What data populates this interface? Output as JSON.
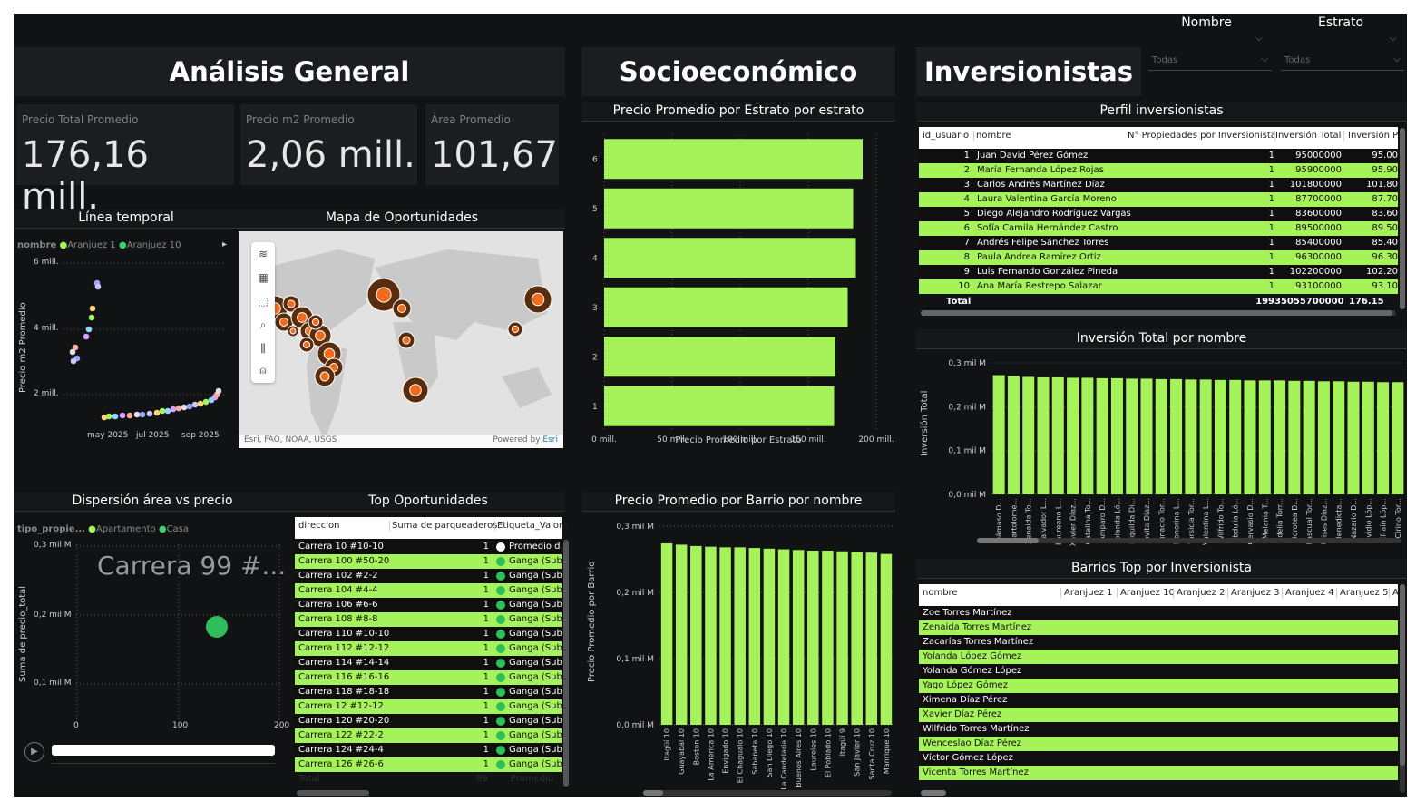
{
  "sections": {
    "general": "Análisis General",
    "socio": "Socioeconómico",
    "inversionistas": "Inversionistas"
  },
  "slicers": {
    "nombre": {
      "label": "Nombre",
      "value": "Todas"
    },
    "estrato": {
      "label": "Estrato",
      "value": "Todas"
    }
  },
  "kpis": [
    {
      "label": "Precio Total Promedio",
      "value": "176,16 mill."
    },
    {
      "label": "Precio m2 Promedio",
      "value": "2,06 mill."
    },
    {
      "label": "Área Promedio",
      "value": "101,67"
    }
  ],
  "timeline": {
    "title": "Línea temporal",
    "legend_label": "nombre",
    "legend": [
      {
        "name": "Aranjuez 1",
        "color": "#a5f25a"
      },
      {
        "name": "Aranjuez 10",
        "color": "#3ad36b"
      }
    ],
    "ylabel": "Precio m2 Promedio",
    "yticks": [
      "6 mill.",
      "4 mill.",
      "2 mill."
    ],
    "xticks": [
      "may 2025",
      "jul 2025",
      "sep 2025"
    ]
  },
  "map": {
    "title": "Mapa de Oportunidades",
    "attribution": "Esri, FAO, NOAA, USGS",
    "powered": "Powered by",
    "powered_link": "Esri"
  },
  "scatter": {
    "title": "Dispersión área vs precio",
    "legend_label": "tipo_propie...",
    "legend": [
      {
        "name": "Apartamento",
        "color": "#a5f25a"
      },
      {
        "name": "Casa",
        "color": "#3ad36b"
      }
    ],
    "ylabel": "Suma de precio_total",
    "yticks": [
      "0,3 mil M",
      "0,2 mil M",
      "0,1 mil M"
    ],
    "xticks": [
      "0",
      "100",
      "200"
    ],
    "overlay": "Carrera 99 #...",
    "point_color": "#2fbf5a"
  },
  "top_oportunidades": {
    "title": "Top Oportunidades",
    "headers": [
      "direccion",
      "Suma de parqueaderos",
      "Etiqueta_Valora"
    ],
    "rows": [
      [
        "Carrera 10 #10-10",
        "1",
        "Promedio d",
        "white"
      ],
      [
        "Carrera 100 #50-20",
        "1",
        "Ganga (Sub",
        "green"
      ],
      [
        "Carrera 102 #2-2",
        "1",
        "Ganga (Sub",
        "green"
      ],
      [
        "Carrera 104 #4-4",
        "1",
        "Ganga (Sub",
        "green"
      ],
      [
        "Carrera 106 #6-6",
        "1",
        "Ganga (Sub",
        "green"
      ],
      [
        "Carrera 108 #8-8",
        "1",
        "Ganga (Sub",
        "green"
      ],
      [
        "Carrera 110 #10-10",
        "1",
        "Ganga (Sub",
        "green"
      ],
      [
        "Carrera 112 #12-12",
        "1",
        "Ganga (Sub",
        "green"
      ],
      [
        "Carrera 114 #14-14",
        "1",
        "Ganga (Sub",
        "green"
      ],
      [
        "Carrera 116 #16-16",
        "1",
        "Ganga (Sub",
        "green"
      ],
      [
        "Carrera 118 #18-18",
        "1",
        "Ganga (Sub",
        "green"
      ],
      [
        "Carrera 12 #12-12",
        "1",
        "Ganga (Sub",
        "green"
      ],
      [
        "Carrera 120 #20-20",
        "1",
        "Ganga (Sub",
        "green"
      ],
      [
        "Carrera 122 #22-2",
        "1",
        "Ganga (Sub",
        "green"
      ],
      [
        "Carrera 124 #24-4",
        "1",
        "Ganga (Sub",
        "green"
      ],
      [
        "Carrera 126 #26-6",
        "1",
        "Ganga (Sub",
        "green"
      ]
    ],
    "total": [
      "Total",
      "99",
      "Promedio"
    ]
  },
  "estrato_chart": {
    "title": "Precio Promedio por Estrato por estrato",
    "xlabel": "Precio Promedio por Estrato",
    "xticks": [
      "0 mill.",
      "50 mill.",
      "100 mill.",
      "150 mill.",
      "200 mill."
    ]
  },
  "barrio_chart": {
    "title": "Precio Promedio por Barrio por nombre",
    "ylabel": "Precio Promedio por Barrio",
    "yticks": [
      "0,3 mil M",
      "0,2 mil M",
      "0,1 mil M",
      "0,0 mil M"
    ]
  },
  "perfil": {
    "title": "Perfil inversionistas",
    "headers": [
      "id_usuario",
      "nombre",
      "N° Propiedades por Inversionista",
      "Inversión Total",
      "Inversión P"
    ],
    "rows": [
      [
        "1",
        "Juan David Pérez Gómez",
        "1",
        "95000000",
        "95.00"
      ],
      [
        "2",
        "María Fernanda López Rojas",
        "1",
        "95900000",
        "95.90"
      ],
      [
        "3",
        "Carlos Andrés Martínez Díaz",
        "1",
        "101800000",
        "101.80"
      ],
      [
        "4",
        "Laura Valentina García Moreno",
        "1",
        "87700000",
        "87.70"
      ],
      [
        "5",
        "Diego Alejandro Rodríguez Vargas",
        "1",
        "83600000",
        "83.60"
      ],
      [
        "6",
        "Sofía Camila Hernández Castro",
        "1",
        "89500000",
        "89.50"
      ],
      [
        "7",
        "Andrés Felipe Sánchez Torres",
        "1",
        "85400000",
        "85.40"
      ],
      [
        "8",
        "Paula Andrea Ramírez Ortiz",
        "1",
        "96300000",
        "96.30"
      ],
      [
        "9",
        "Luis Fernando González Pineda",
        "1",
        "102200000",
        "102.20"
      ],
      [
        "10",
        "Ana María Restrepo Salazar",
        "1",
        "93100000",
        "93.10"
      ]
    ],
    "total": [
      "Total",
      "199",
      "35055700000",
      "176.15"
    ]
  },
  "inversion_chart": {
    "title": "Inversión Total por nombre",
    "ylabel": "Inversión Total",
    "yticks": [
      "0,3 mil M",
      "0,2 mil M",
      "0,1 mil M",
      "0,0 mil M"
    ]
  },
  "barrios_top": {
    "title": "Barrios Top por Inversionista",
    "headers": [
      "nombre",
      "Aranjuez 1",
      "Aranjuez 10",
      "Aranjuez 2",
      "Aranjuez 3",
      "Aranjuez 4",
      "Aranjuez 5",
      "A"
    ],
    "rows": [
      "Zoe Torres Martínez",
      "Zenaida Torres Martínez",
      "Zacarías Torres Martínez",
      "Yolanda López Gómez",
      "Yolanda Gómez López",
      "Yago López Gómez",
      "Ximena Díaz Pérez",
      "Xavier Díaz Pérez",
      "Wilfrido Torres Martínez",
      "Wenceslao Díaz Pérez",
      "Víctor Gómez López",
      "Vicenta Torres Martínez"
    ]
  },
  "chart_data": [
    {
      "type": "bar",
      "title": "Precio Promedio por Estrato por estrato",
      "xlabel": "Precio Promedio por Estrato",
      "ylabel": "",
      "categories": [
        "6",
        "5",
        "4",
        "3",
        "2",
        "1"
      ],
      "values": [
        190,
        183,
        185,
        179,
        170,
        169
      ],
      "xlim": [
        0,
        200
      ]
    },
    {
      "type": "bar",
      "title": "Precio Promedio por Barrio por nombre",
      "ylabel": "Precio Promedio por Barrio",
      "categories": [
        "Itagüí 10",
        "Guayabal 10",
        "Boston 10",
        "La América 10",
        "Envigado 10",
        "El Chagualo 10",
        "Sabaneta 10",
        "San Diego 10",
        "La Candelaria 10",
        "Buenos Aires 10",
        "Laureles 10",
        "El Poblado 10",
        "Itagüí 9",
        "San Javier 10",
        "Santa Cruz 10",
        "Manrique 10"
      ],
      "values": [
        0.274,
        0.272,
        0.27,
        0.269,
        0.268,
        0.268,
        0.267,
        0.266,
        0.265,
        0.264,
        0.263,
        0.263,
        0.262,
        0.261,
        0.26,
        0.258
      ],
      "ylim": [
        0,
        0.3
      ]
    },
    {
      "type": "bar",
      "title": "Inversión Total por nombre",
      "ylabel": "Inversión Total",
      "categories": [
        "Dámaso D...",
        "Bartolomé...",
        "Zenaida To...",
        "Salvador L...",
        "Laureano L...",
        "Xavier Díaz...",
        "Catalina To...",
        "Amparo D...",
        "Yolanda Ló...",
        "Riquilda Di...",
        "Jovita Díaz...",
        "Ignacio Tor...",
        "Honorina L...",
        "Tarsicia Tor...",
        "Valentina L...",
        "Wilfrido To...",
        "Obdulia Ló...",
        "Gervasio D...",
        "Melania T...",
        "Fidelia Torr...",
        "Dorotea D...",
        "Pascual Tor...",
        "Ulises Díaz...",
        "Benedicta...",
        "Nazario D...",
        "Ovidio Lóp...",
        "Efraín Lóp...",
        "Cirino Tor..."
      ],
      "values": [
        0.272,
        0.27,
        0.268,
        0.267,
        0.267,
        0.266,
        0.266,
        0.265,
        0.265,
        0.264,
        0.264,
        0.263,
        0.263,
        0.262,
        0.262,
        0.261,
        0.261,
        0.26,
        0.26,
        0.26,
        0.259,
        0.259,
        0.258,
        0.258,
        0.257,
        0.257,
        0.256,
        0.256
      ],
      "ylim": [
        0,
        0.3
      ]
    }
  ]
}
